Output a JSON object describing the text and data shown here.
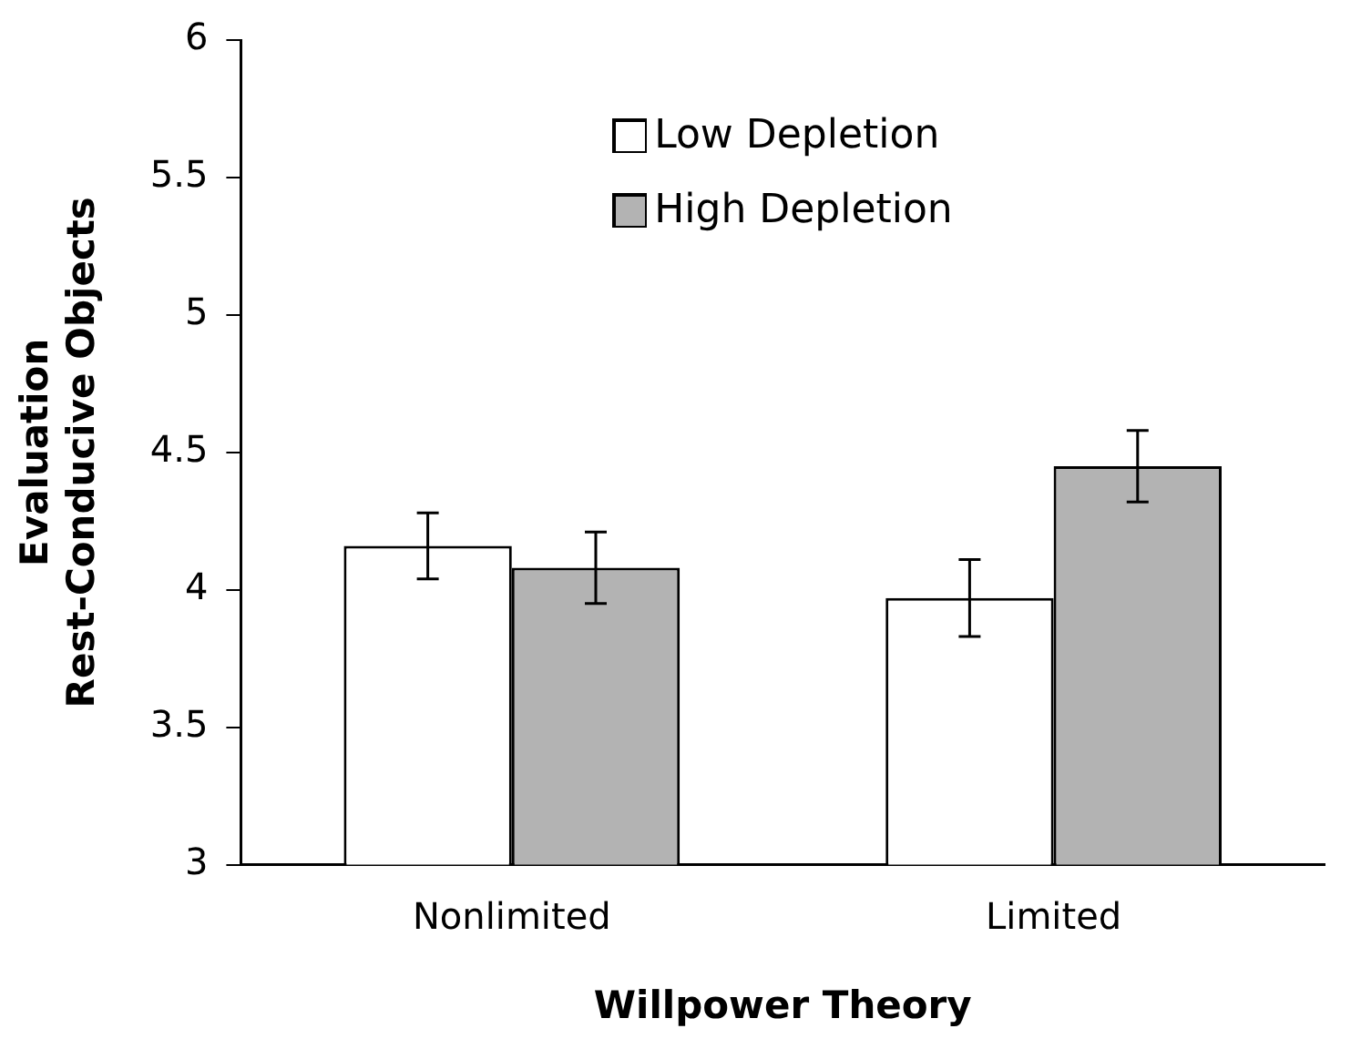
{
  "chart_data": {
    "type": "bar",
    "xlabel": "Willpower Theory",
    "ylabel": "Evaluation\nRest-Conducive Objects",
    "categories": [
      "Nonlimited",
      "Limited"
    ],
    "series": [
      {
        "name": "Low Depletion",
        "color": "#ffffff",
        "values": [
          4.16,
          3.97
        ],
        "errors": [
          0.12,
          0.14
        ]
      },
      {
        "name": "High Depletion",
        "color": "#b3b3b3",
        "values": [
          4.08,
          4.45
        ],
        "errors": [
          0.13,
          0.13
        ]
      }
    ],
    "ylim": [
      3,
      6
    ],
    "yticks": [
      3,
      3.5,
      4,
      4.5,
      5,
      5.5,
      6
    ],
    "grid": false,
    "legend": "top"
  }
}
